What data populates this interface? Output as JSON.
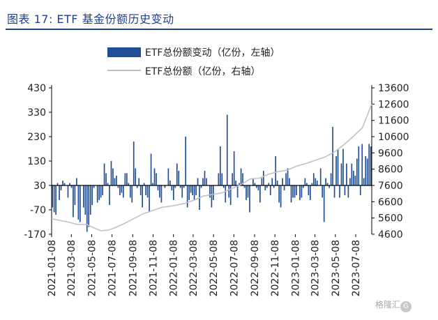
{
  "title": "图表 17: ETF 基金份额历史变动",
  "watermark": "格隆汇",
  "watermark_logo": "G",
  "chart_data": {
    "type": "bar+line",
    "title": "图表 17: ETF 基金份额历史变动",
    "series": [
      {
        "name": "ETF总份额变动（亿份，左轴）",
        "type": "bar",
        "axis": "left",
        "color": "#1f4e96",
        "values": [
          -60,
          -80,
          -90,
          40,
          -30,
          10,
          50,
          40,
          30,
          -20,
          40,
          20,
          -100,
          -50,
          60,
          -110,
          -120,
          30,
          -60,
          -90,
          -160,
          -140,
          -90,
          -50,
          20,
          30,
          -40,
          -30,
          -20,
          -10,
          120,
          80,
          40,
          -50,
          130,
          100,
          60,
          70,
          20,
          -10,
          0,
          -20,
          80,
          80,
          40,
          -20,
          -40,
          210,
          100,
          20,
          60,
          -10,
          -60,
          40,
          -10,
          -20,
          -80,
          160,
          40,
          100,
          80,
          10,
          -20,
          -40,
          30,
          20,
          30,
          100,
          50,
          10,
          -30,
          20,
          120,
          90,
          20,
          -20,
          20,
          230,
          -60,
          -30,
          0,
          -10,
          -30,
          -10,
          60,
          -70,
          20,
          60,
          90,
          60,
          30,
          -20,
          -60,
          -30,
          30,
          30,
          80,
          190,
          80,
          20,
          -40,
          320,
          -20,
          -50,
          80,
          170,
          50,
          -20,
          40,
          100,
          80,
          20,
          -30,
          -20,
          -80,
          30,
          60,
          40,
          20,
          10,
          -40,
          60,
          90,
          10,
          20,
          40,
          -10,
          60,
          20,
          150,
          50,
          -40,
          -60,
          60,
          10,
          80,
          100,
          60,
          -40,
          -20,
          -20,
          -10,
          30,
          -30,
          -20,
          20,
          60,
          40,
          -10,
          -30,
          40,
          80,
          60,
          50,
          30,
          100,
          -20,
          -120,
          60,
          40,
          20,
          80,
          270,
          -20,
          150,
          180,
          -20,
          120,
          180,
          -10,
          120,
          -20,
          60,
          120,
          90,
          70,
          140,
          190,
          -10,
          200,
          60,
          150,
          140,
          200,
          190
        ],
        "x_range": [
          "2021-01-08",
          "2023-08-25"
        ]
      },
      {
        "name": "ETF总份额（亿份，右轴）",
        "type": "line",
        "axis": "right",
        "color": "#c0c0c0",
        "x_dates": [
          "2021-01-08",
          "2021-02-26",
          "2021-03-26",
          "2021-04-23",
          "2021-05-14",
          "2021-06-04",
          "2021-06-25",
          "2021-07-16",
          "2021-08-13",
          "2021-09-10",
          "2021-10-08",
          "2021-11-05",
          "2021-12-03",
          "2022-01-07",
          "2022-02-11",
          "2022-03-11",
          "2022-04-08",
          "2022-05-06",
          "2022-06-03",
          "2022-07-01",
          "2022-07-29",
          "2022-08-26",
          "2022-09-23",
          "2022-10-21",
          "2022-11-18",
          "2022-12-16",
          "2023-01-13",
          "2023-02-10",
          "2023-03-10",
          "2023-04-07",
          "2023-05-05",
          "2023-06-02",
          "2023-06-30",
          "2023-07-28",
          "2023-08-25"
        ],
        "values": [
          5550,
          5350,
          5200,
          5200,
          5000,
          4820,
          4850,
          5000,
          5250,
          5550,
          5850,
          6050,
          6250,
          6350,
          6500,
          6700,
          6950,
          7050,
          7150,
          7400,
          7650,
          8000,
          8050,
          8300,
          8450,
          8550,
          8800,
          8950,
          9150,
          9350,
          9650,
          10100,
          10600,
          11150,
          12600
        ]
      }
    ],
    "left_axis": {
      "ticks": [
        430,
        330,
        230,
        130,
        30,
        -70,
        -170
      ],
      "ylim": [
        -170,
        430
      ]
    },
    "right_axis": {
      "ticks": [
        13600,
        12600,
        11600,
        10600,
        9600,
        8600,
        7600,
        6600,
        5600,
        4600
      ],
      "ylim": [
        4600,
        13600
      ]
    },
    "x_ticks": [
      "2021-01-08",
      "2021-03-08",
      "2021-05-08",
      "2021-07-08",
      "2021-09-08",
      "2021-11-08",
      "2022-01-08",
      "2022-03-08",
      "2022-05-08",
      "2022-07-08",
      "2022-09-08",
      "2022-11-08",
      "2023-01-08",
      "2023-03-08",
      "2023-05-08",
      "2023-07-08"
    ],
    "legend": [
      "ETF总份额变动（亿份，左轴）",
      "ETF总份额（亿份，右轴）"
    ],
    "legend_position": "top-center",
    "grid": false
  }
}
